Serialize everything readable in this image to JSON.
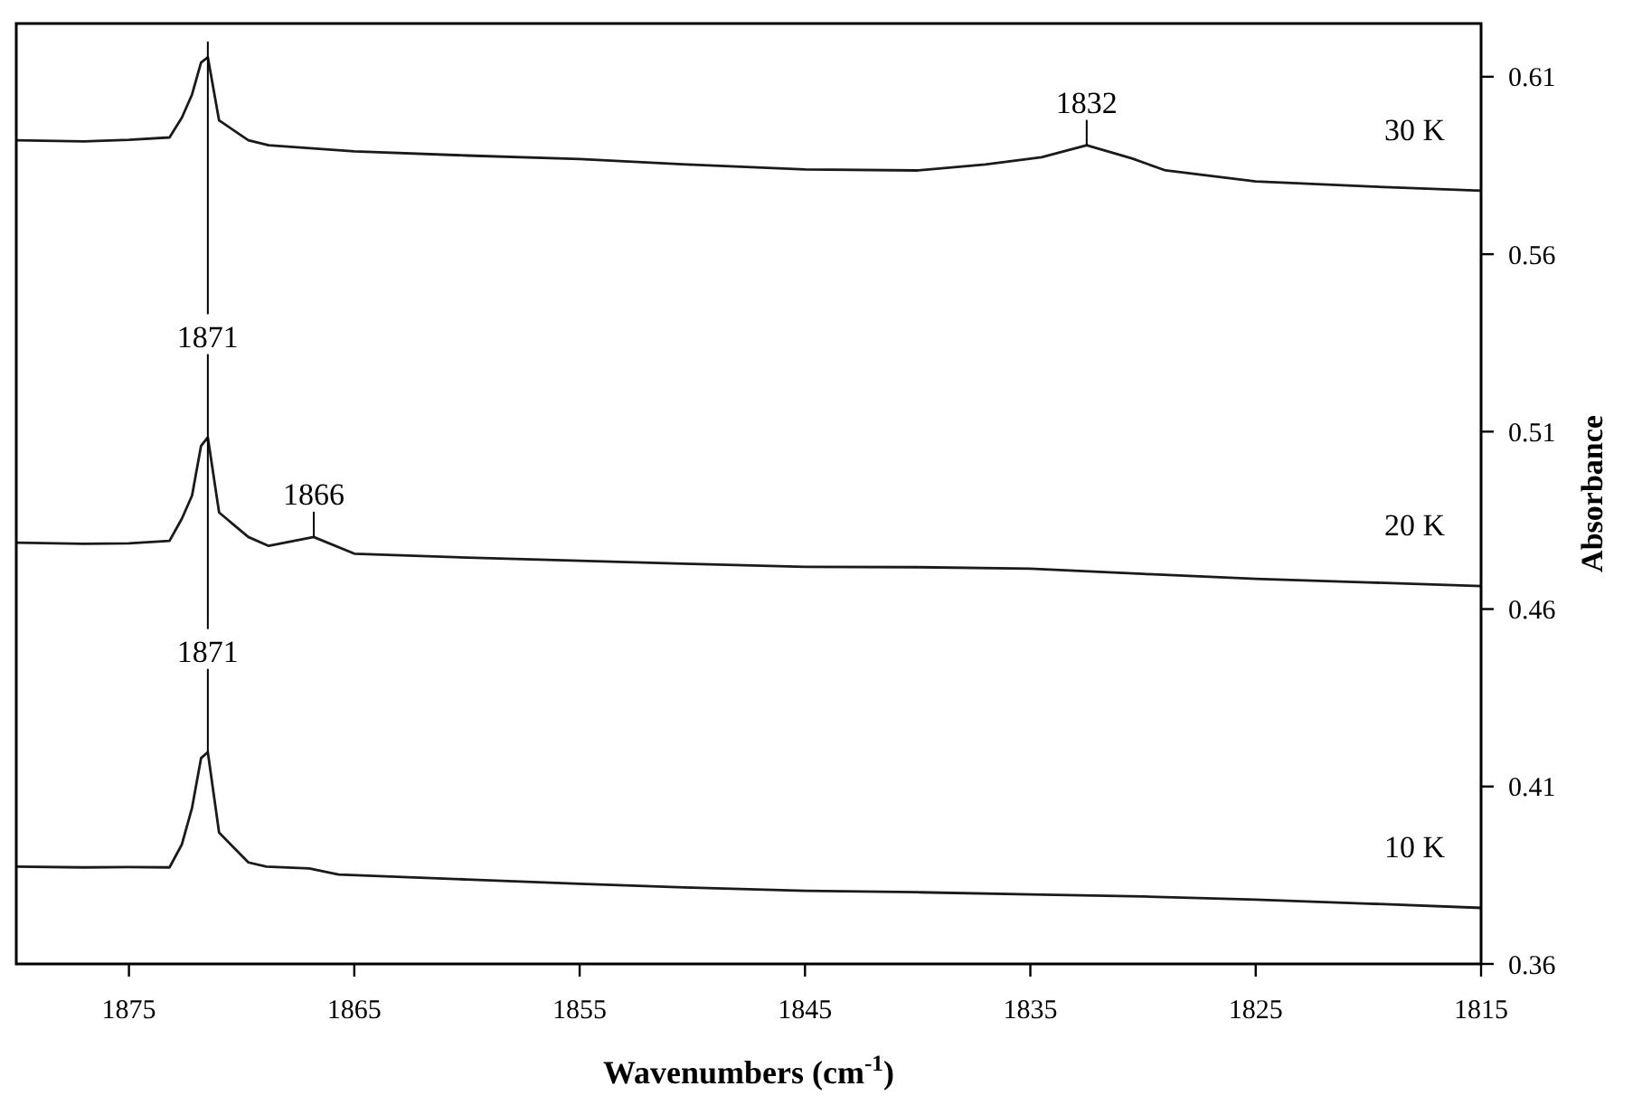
{
  "chart_data": {
    "type": "line",
    "xlabel": "Wavenumbers (cm$^{-1}$)",
    "ylabel": "Absorbance",
    "xlim": [
      1880,
      1815
    ],
    "xticks": [
      1875,
      1865,
      1855,
      1845,
      1835,
      1825,
      1815
    ],
    "ylim": [
      0.36,
      0.625
    ],
    "yticks": [
      0.36,
      0.41,
      0.46,
      0.51,
      0.56,
      0.61
    ],
    "grid": false,
    "marker": "none",
    "line_style": "solid",
    "series": [
      {
        "name": "30 K",
        "color": "#1a1a1a",
        "x": [
          1880,
          1877,
          1875,
          1873.2,
          1872.65,
          1872.2,
          1871.8,
          1871.5,
          1871.0,
          1869.7,
          1868.8,
          1865,
          1860,
          1855,
          1850,
          1845,
          1840,
          1837,
          1834.5,
          1832.5,
          1830.5,
          1829,
          1825,
          1820,
          1815
        ],
        "values": [
          0.5921,
          0.5918,
          0.5922,
          0.5929,
          0.5985,
          0.605,
          0.614,
          0.6155,
          0.5977,
          0.5921,
          0.5907,
          0.589,
          0.5878,
          0.5868,
          0.5852,
          0.5839,
          0.5836,
          0.5853,
          0.5873,
          0.5907,
          0.587,
          0.5836,
          0.5805,
          0.5791,
          0.5779
        ]
      },
      {
        "name": "20 K",
        "color": "#1a1a1a",
        "x": [
          1880,
          1877,
          1875,
          1873.2,
          1872.65,
          1872.2,
          1871.8,
          1871.5,
          1871.0,
          1869.7,
          1868.8,
          1866.8,
          1865,
          1860,
          1855,
          1850,
          1845,
          1840,
          1835,
          1830,
          1825,
          1820,
          1815
        ],
        "values": [
          0.4787,
          0.4784,
          0.4785,
          0.4792,
          0.4855,
          0.492,
          0.506,
          0.5084,
          0.4872,
          0.4803,
          0.4778,
          0.4803,
          0.4756,
          0.4745,
          0.4736,
          0.4727,
          0.4719,
          0.4718,
          0.4714,
          0.4699,
          0.4685,
          0.4675,
          0.4665
        ]
      },
      {
        "name": "10 K",
        "color": "#1a1a1a",
        "x": [
          1880,
          1877,
          1875,
          1873.2,
          1872.65,
          1872.2,
          1871.8,
          1871.5,
          1871.0,
          1869.7,
          1868.9,
          1867,
          1865.7,
          1860,
          1855,
          1850,
          1845,
          1840,
          1835,
          1830,
          1825,
          1820,
          1815
        ],
        "values": [
          0.3874,
          0.3872,
          0.3873,
          0.3872,
          0.3937,
          0.404,
          0.418,
          0.4197,
          0.397,
          0.3886,
          0.3874,
          0.3869,
          0.3852,
          0.3838,
          0.3826,
          0.3815,
          0.3806,
          0.3802,
          0.3796,
          0.379,
          0.3781,
          0.377,
          0.3758
        ]
      }
    ],
    "annotations": [
      {
        "text": "1871",
        "x": 1871.5,
        "y": 0.5084
      },
      {
        "text": "1866",
        "x": 1866.8,
        "y": 0.4803
      },
      {
        "text": "1832",
        "x": 1832.5,
        "y": 0.5907
      },
      {
        "text": "1871",
        "x": 1871.5,
        "y": 0.4197
      }
    ]
  }
}
